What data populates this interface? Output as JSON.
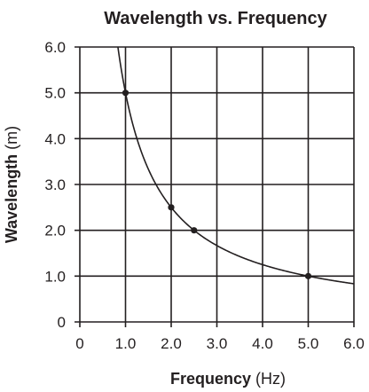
{
  "chart_data": {
    "type": "line",
    "title": "Wavelength vs. Frequency",
    "xlabel": {
      "main": "Frequency",
      "unit": "(Hz)"
    },
    "ylabel": {
      "main": "Wavelength",
      "unit": "(m)"
    },
    "xlim": [
      0,
      6
    ],
    "ylim": [
      0,
      6
    ],
    "x_ticks": [
      "0",
      "1.0",
      "2.0",
      "3.0",
      "4.0",
      "5.0",
      "6.0"
    ],
    "y_ticks": [
      "0",
      "1.0",
      "2.0",
      "3.0",
      "4.0",
      "5.0",
      "6.0"
    ],
    "grid": true,
    "series": [
      {
        "curve": {
          "equation": "y = 5 / x",
          "x_range": [
            0.833,
            6.0
          ]
        },
        "points": [
          {
            "x": 1.0,
            "y": 5.0
          },
          {
            "x": 2.0,
            "y": 2.5
          },
          {
            "x": 2.5,
            "y": 2.0
          },
          {
            "x": 5.0,
            "y": 1.0
          }
        ]
      }
    ],
    "colors": {
      "ink": "#231f20",
      "background": "#ffffff"
    }
  }
}
